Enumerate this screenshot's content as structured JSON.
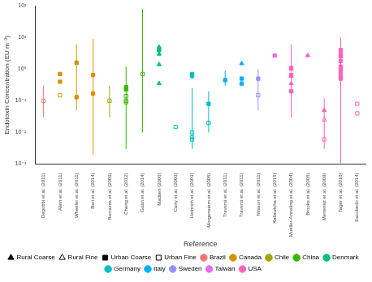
{
  "chart_data": {
    "type": "scatter",
    "x_label": "Reference",
    "y_label": "Endotoxin Concentration (EU m⁻³)",
    "log": "y",
    "grid": false,
    "legend": "bottom",
    "ylim": [
      0.001,
      100
    ],
    "yticks": [
      {
        "value": 0.001,
        "label": "10⁻³"
      },
      {
        "value": 0.01,
        "label": "10⁻²"
      },
      {
        "value": 0.1,
        "label": "10⁻¹"
      },
      {
        "value": 1,
        "label": "10⁰"
      },
      {
        "value": 10,
        "label": "10¹"
      },
      {
        "value": 100,
        "label": "10²"
      }
    ],
    "groups": [
      {
        "name": "Rural Coarse",
        "marker": "triangle"
      },
      {
        "name": "Rural Fine",
        "marker": "triangle-open"
      },
      {
        "name": "Urban Coarse",
        "marker": "square"
      },
      {
        "name": "Urban Fine",
        "marker": "square-open"
      }
    ],
    "series": [
      {
        "name": "Brazil",
        "color": "#F8766D"
      },
      {
        "name": "Canada",
        "color": "#D89000"
      },
      {
        "name": "Chile",
        "color": "#A3A500"
      },
      {
        "name": "China",
        "color": "#39B600"
      },
      {
        "name": "Denmark",
        "color": "#00BF7D"
      },
      {
        "name": "Germany",
        "color": "#00BFC4"
      },
      {
        "name": "Italy",
        "color": "#00B0F6"
      },
      {
        "name": "Sweden",
        "color": "#9590FF"
      },
      {
        "name": "Taiwan",
        "color": "#E76BF3"
      },
      {
        "name": "USA",
        "color": "#FF62BC"
      }
    ],
    "categories": [
      "Degobbi et al. (2011)",
      "Allen et al. (2011)",
      "Wheeler et al. (2011)",
      "Bari et al. (2014)",
      "Barrazza et al. (2009)",
      "Cheng et al. (2012)",
      "Guan et al. (2014)",
      "Madsen (2006)",
      "Carty et al. (2003)",
      "Heinrich et al. (2003)",
      "Morgenstern et al. (2005)",
      "Traversi et al. (2011)",
      "Traversi et al. (2011)",
      "Nilsson et al. (2011)",
      "Kallawicha et al. (2015)",
      "Mueller-Anneling et al. (2004)",
      "Brooks et al. (2006)",
      "Menetrez et al. (2009)",
      "Tager et al. (2010)",
      "Escobedo et al. (2014)"
    ],
    "references": [
      {
        "country": "Brazil",
        "range": [
          0.03,
          0.3
        ],
        "points": [
          {
            "group": "Urban Fine",
            "y": 0.1
          }
        ]
      },
      {
        "country": "Canada",
        "points": [
          {
            "group": "Urban Coarse",
            "y": 0.7
          },
          {
            "group": "Urban Coarse",
            "y": 0.4
          },
          {
            "group": "Urban Fine",
            "y": 0.15
          }
        ]
      },
      {
        "country": "Canada",
        "range": [
          0.05,
          6
        ],
        "points": [
          {
            "group": "Urban Coarse",
            "y": 1.6
          },
          {
            "group": "Urban Coarse",
            "y": 0.13
          }
        ]
      },
      {
        "country": "Canada",
        "range": [
          0.002,
          9
        ],
        "points": [
          {
            "group": "Urban Coarse",
            "y": 0.65
          },
          {
            "group": "Urban Coarse",
            "y": 0.17
          }
        ]
      },
      {
        "country": "Chile",
        "range": [
          0.03,
          0.3
        ],
        "points": [
          {
            "group": "Urban Fine",
            "y": 0.1
          }
        ]
      },
      {
        "country": "China",
        "range": [
          0.003,
          1.2
        ],
        "points": [
          {
            "group": "Urban Coarse",
            "y": 0.27
          },
          {
            "group": "Urban Coarse",
            "y": 0.23
          },
          {
            "group": "Urban Fine",
            "y": 0.14
          },
          {
            "group": "Urban Fine",
            "y": 0.1
          },
          {
            "group": "Urban Fine",
            "y": 0.09
          }
        ]
      },
      {
        "country": "China",
        "range": [
          0.01,
          80
        ],
        "points": [
          {
            "group": "Urban Fine",
            "y": 0.7
          }
        ]
      },
      {
        "country": "Denmark",
        "points": [
          {
            "group": "Rural Coarse",
            "y": 5
          },
          {
            "group": "Urban Coarse",
            "y": 4
          },
          {
            "group": "Rural Coarse",
            "y": 3
          },
          {
            "group": "Rural Coarse",
            "y": 1.4
          },
          {
            "group": "Rural Coarse",
            "y": 0.35
          }
        ]
      },
      {
        "country": "Germany",
        "points": [
          {
            "group": "Urban Fine",
            "y": 0.015
          }
        ]
      },
      {
        "country": "Germany",
        "range": [
          0.003,
          0.25
        ],
        "points": [
          {
            "group": "Urban Coarse",
            "y": 0.7
          },
          {
            "group": "Urban Coarse",
            "y": 0.6
          },
          {
            "group": "Urban Fine",
            "y": 0.01
          },
          {
            "group": "Urban Fine",
            "y": 0.007
          },
          {
            "group": "Urban Fine",
            "y": 0.006
          }
        ]
      },
      {
        "country": "Germany",
        "range": [
          0.01,
          0.2
        ],
        "points": [
          {
            "group": "Urban Coarse",
            "y": 0.08
          },
          {
            "group": "Urban Fine",
            "y": 0.02
          }
        ]
      },
      {
        "country": "Italy",
        "range": [
          0.3,
          0.9
        ],
        "points": [
          {
            "group": "Urban Coarse",
            "y": 0.45
          }
        ]
      },
      {
        "country": "Italy",
        "points": [
          {
            "group": "Rural Coarse",
            "y": 1.5
          },
          {
            "group": "Urban Coarse",
            "y": 0.5
          },
          {
            "group": "Urban Coarse",
            "y": 0.35
          }
        ]
      },
      {
        "country": "Sweden",
        "range": [
          0.05,
          1
        ],
        "points": [
          {
            "group": "Urban Coarse",
            "y": 0.5
          },
          {
            "group": "Urban Fine",
            "y": 0.15
          }
        ]
      },
      {
        "country": "Taiwan",
        "points": [
          {
            "group": "Urban Coarse",
            "y": 2.7
          }
        ]
      },
      {
        "country": "USA",
        "range": [
          0.03,
          6
        ],
        "points": [
          {
            "group": "Rural Coarse",
            "y": 1
          },
          {
            "group": "Urban Coarse",
            "y": 1.1
          },
          {
            "group": "Rural Coarse",
            "y": 0.6
          },
          {
            "group": "Urban Coarse",
            "y": 0.65
          },
          {
            "group": "Rural Coarse",
            "y": 0.35
          },
          {
            "group": "Rural Coarse",
            "y": 0.2
          },
          {
            "group": "Urban Coarse",
            "y": 0.2
          }
        ]
      },
      {
        "country": "USA",
        "points": [
          {
            "group": "Rural Coarse",
            "y": 2.7
          }
        ]
      },
      {
        "country": "USA",
        "range": [
          0.003,
          0.12
        ],
        "points": [
          {
            "group": "Rural Coarse",
            "y": 0.05
          },
          {
            "group": "Rural Fine",
            "y": 0.025
          },
          {
            "group": "Urban Fine",
            "y": 0.006
          }
        ]
      },
      {
        "country": "USA",
        "range": [
          0.0008,
          10
        ],
        "points": [
          {
            "group": "Urban Coarse",
            "y": 4
          },
          {
            "group": "Urban Coarse",
            "y": 3
          },
          {
            "group": "Urban Coarse",
            "y": 2.5
          },
          {
            "group": "Urban Coarse",
            "y": 1.8
          },
          {
            "group": "Urban Coarse",
            "y": 1.2
          },
          {
            "group": "Urban Coarse",
            "y": 1
          },
          {
            "group": "Urban Coarse",
            "y": 0.8
          },
          {
            "group": "Urban Coarse",
            "y": 0.6
          },
          {
            "group": "Urban Coarse",
            "y": 0.5
          }
        ]
      },
      {
        "country": "USA",
        "points": [
          {
            "group": "Urban Fine",
            "y": 0.08
          },
          {
            "group": "Urban Fine",
            "y": 0.04
          }
        ]
      }
    ]
  }
}
